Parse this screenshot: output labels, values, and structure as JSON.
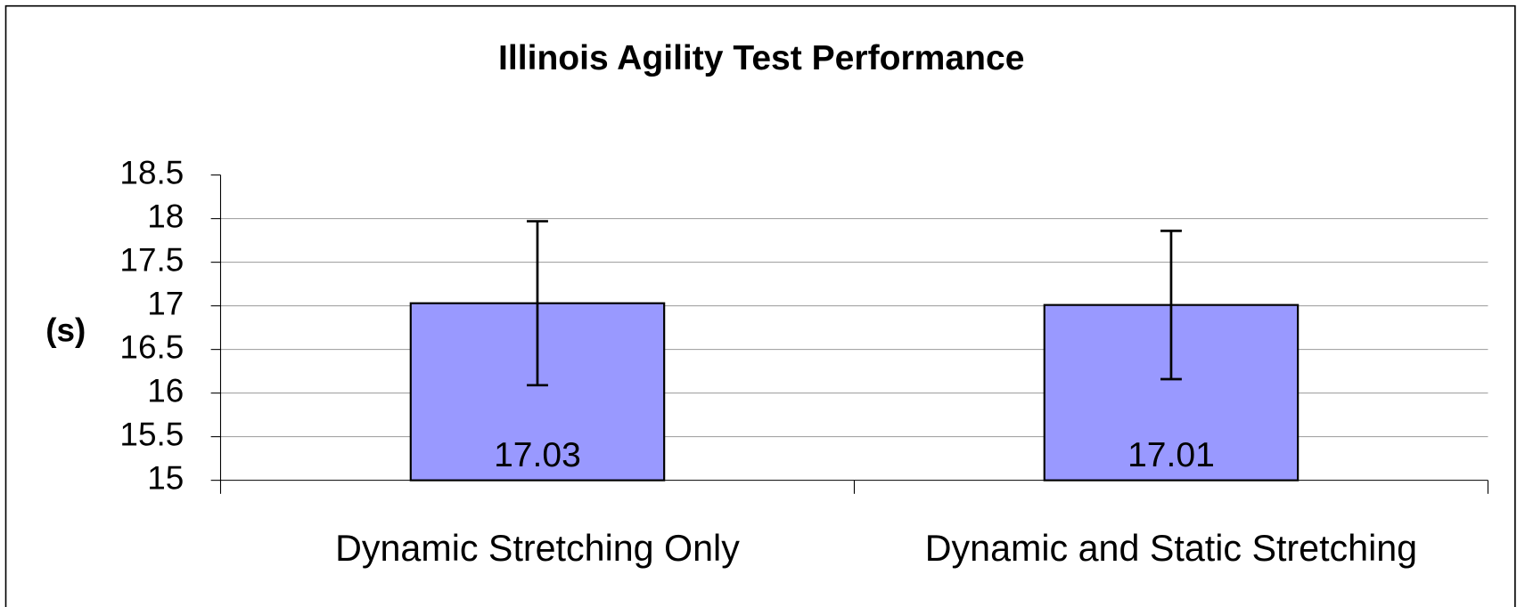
{
  "chart_data": {
    "type": "bar",
    "title": "Illinois Agility Test Performance",
    "y_label": "(s)",
    "categories": [
      "Dynamic Stretching Only",
      "Dynamic and Static Stretching"
    ],
    "values": [
      17.03,
      17.01
    ],
    "errors": [
      0.94,
      0.85
    ],
    "color": "#9999ff",
    "ylim": [
      15,
      18.5
    ],
    "yticks": [
      15,
      15.5,
      16,
      16.5,
      17,
      17.5,
      18,
      18.5
    ],
    "grid": true
  }
}
